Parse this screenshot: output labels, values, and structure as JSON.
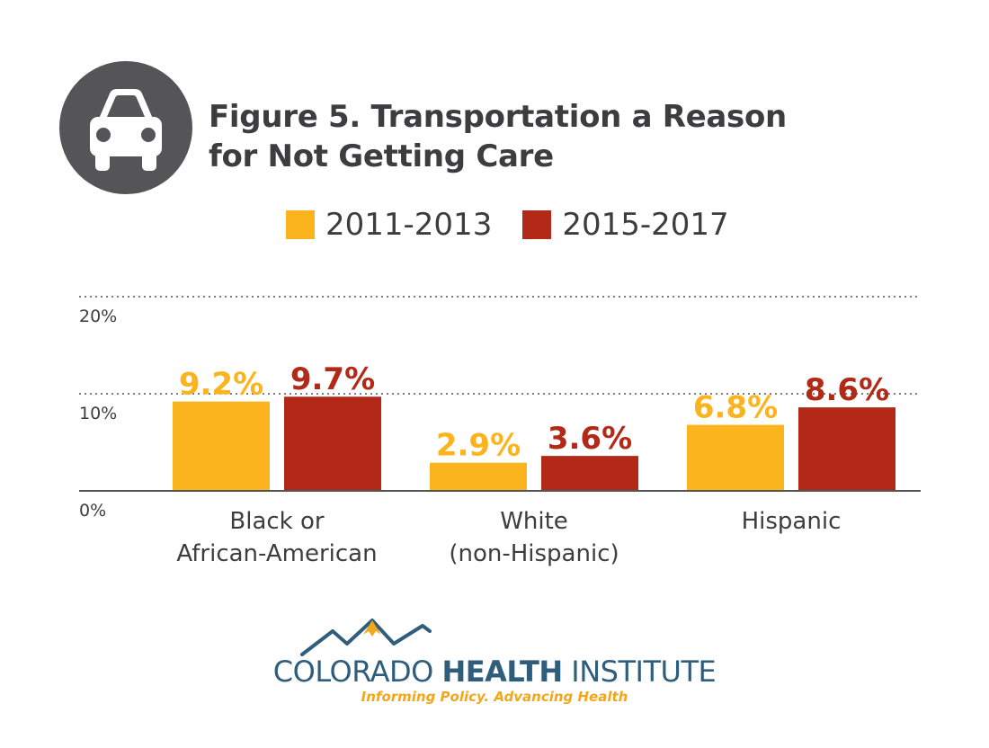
{
  "title": {
    "line1": "Figure 5. Transportation a Reason",
    "line2": "for Not Getting Care"
  },
  "icon": "car-icon",
  "colors": {
    "series1": "#FBB41E",
    "series2": "#B22A17",
    "icon_bg": "#555557",
    "logo_blue": "#2F5D7C",
    "logo_orange": "#F2A71B"
  },
  "chart_data": {
    "type": "bar",
    "categories": [
      [
        "Black or",
        "African-American"
      ],
      [
        "White",
        "(non-Hispanic)"
      ],
      [
        "Hispanic"
      ]
    ],
    "series": [
      {
        "name": "2011-2013",
        "values": [
          9.2,
          2.9,
          6.8
        ],
        "labels": [
          "9.2%",
          "2.9%",
          "6.8%"
        ]
      },
      {
        "name": "2015-2017",
        "values": [
          9.7,
          3.6,
          8.6
        ],
        "labels": [
          "9.7%",
          "3.6%",
          "8.6%"
        ]
      }
    ],
    "y_ticks": [
      {
        "value": 0,
        "label": "0%"
      },
      {
        "value": 10,
        "label": "10%"
      },
      {
        "value": 20,
        "label": "20%"
      }
    ],
    "ylim": [
      0,
      20
    ],
    "grid": "dotted",
    "legend_position": "top"
  },
  "logo": {
    "name_light1": "COLORADO ",
    "name_bold": "HEALTH",
    "name_light2": " INSTITUTE",
    "tagline": "Informing Policy. Advancing Health"
  }
}
